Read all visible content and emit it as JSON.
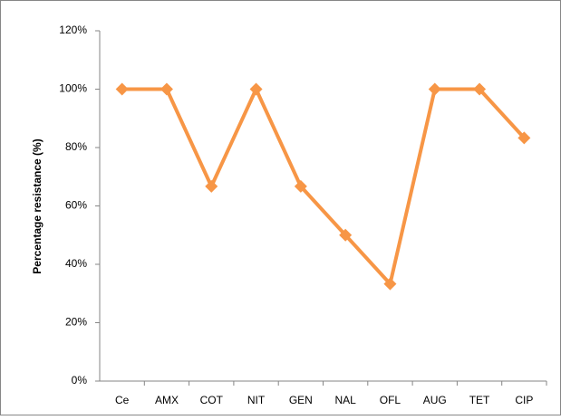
{
  "chart_data": {
    "type": "line",
    "y_label": "Percentage resistance (%)",
    "categories": [
      "Ce",
      "AMX",
      "COT",
      "NIT",
      "GEN",
      "NAL",
      "OFL",
      "AUG",
      "TET",
      "CIP"
    ],
    "values": [
      100,
      100,
      66.7,
      100,
      66.7,
      50,
      33.3,
      100,
      100,
      83.3
    ],
    "color": "#f79646",
    "ylim": [
      0,
      120
    ],
    "yticks": [
      {
        "value": 0,
        "label": "0%"
      },
      {
        "value": 20,
        "label": "20%"
      },
      {
        "value": 40,
        "label": "40%"
      },
      {
        "value": 60,
        "label": "60%"
      },
      {
        "value": 80,
        "label": "80%"
      },
      {
        "value": 100,
        "label": "100%"
      },
      {
        "value": 120,
        "label": "120%"
      }
    ],
    "grid": false
  }
}
